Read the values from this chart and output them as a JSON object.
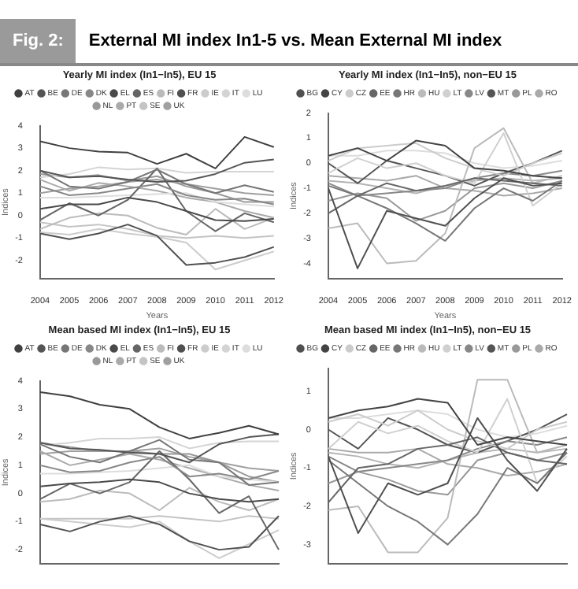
{
  "chart_data": [
    {
      "type": "other",
      "title": "External MI index In1-5 vs. Mean External MI index",
      "annotations": [
        "Fig. 2:"
      ]
    },
    {
      "type": "line",
      "title": "Yearly MI index (In1−In5), EU 15",
      "xlabel": "Years",
      "ylabel": "Indices",
      "categories": [
        "2004",
        "2005",
        "2006",
        "2007",
        "2008",
        "2009",
        "2010",
        "2011",
        "2012"
      ],
      "ylim": [
        -2.8,
        4
      ],
      "yticks": [
        -2,
        -1,
        0,
        1,
        2,
        3,
        4
      ],
      "grid": false,
      "legend": "top",
      "series": [
        {
          "name": "AT",
          "color": "#404040",
          "values": [
            3.3,
            3.0,
            2.85,
            2.8,
            2.3,
            2.75,
            2.1,
            3.5,
            3.05
          ]
        },
        {
          "name": "BE",
          "color": "#555555",
          "values": [
            2.0,
            1.7,
            1.75,
            1.6,
            1.5,
            1.55,
            1.85,
            2.35,
            2.5
          ]
        },
        {
          "name": "DE",
          "color": "#777777",
          "values": [
            2.0,
            1.3,
            1.2,
            1.5,
            2.05,
            1.4,
            1.0,
            1.35,
            1.05
          ]
        },
        {
          "name": "DK",
          "color": "#888888",
          "values": [
            1.3,
            0.9,
            1.0,
            1.2,
            1.4,
            0.9,
            0.7,
            0.75,
            0.5
          ]
        },
        {
          "name": "EL",
          "color": "#4a4a4a",
          "values": [
            0.3,
            0.5,
            0.5,
            0.8,
            0.6,
            0.2,
            -0.2,
            -0.25,
            -0.15
          ]
        },
        {
          "name": "ES",
          "color": "#666666",
          "values": [
            -0.2,
            0.55,
            0,
            0.7,
            2.1,
            0.2,
            -0.7,
            0.1,
            -0.3
          ]
        },
        {
          "name": "FI",
          "color": "#bbbbbb",
          "values": [
            -0.6,
            -0.1,
            0.1,
            0,
            -0.55,
            -0.85,
            0.3,
            -0.6,
            -0.1
          ]
        },
        {
          "name": "FR",
          "color": "#505050",
          "values": [
            -0.8,
            -1.05,
            -0.8,
            -0.4,
            -0.9,
            -2.2,
            -2.1,
            -1.85,
            -1.4
          ]
        },
        {
          "name": "IE",
          "color": "#cccccc",
          "values": [
            -0.75,
            -0.85,
            -0.6,
            -0.8,
            -0.95,
            -1.2,
            -2.4,
            -2.0,
            -1.6
          ]
        },
        {
          "name": "IT",
          "color": "#d4d4d4",
          "values": [
            1.7,
            1.85,
            2.15,
            2.05,
            2.1,
            1.9,
            1.95,
            1.95,
            1.95
          ]
        },
        {
          "name": "LU",
          "color": "#dddddd",
          "values": [
            0.8,
            0.8,
            0.85,
            0.9,
            0.95,
            1.0,
            0.6,
            0.5,
            0.4
          ]
        },
        {
          "name": "NL",
          "color": "#999999",
          "values": [
            1.85,
            1.7,
            1.8,
            1.55,
            1.75,
            1.3,
            1.0,
            0.6,
            0.6
          ]
        },
        {
          "name": "PT",
          "color": "#aaaaaa",
          "values": [
            1.6,
            1.1,
            1.45,
            1.3,
            1.1,
            0.8,
            0.6,
            0.2,
            -0.1
          ]
        },
        {
          "name": "SE",
          "color": "#c4c4c4",
          "values": [
            -0.3,
            -0.5,
            -0.4,
            -0.6,
            -0.9,
            -1.0,
            -0.9,
            -1.0,
            -0.9
          ]
        },
        {
          "name": "UK",
          "color": "#a0a0a0",
          "values": [
            1.0,
            1.2,
            1.3,
            1.5,
            1.6,
            1.4,
            1.2,
            1.0,
            0.9
          ]
        }
      ]
    },
    {
      "type": "line",
      "title": "Yearly MI index (In1−In5), non−EU 15",
      "xlabel": "Years",
      "ylabel": "Indices",
      "categories": [
        "2004",
        "2005",
        "2006",
        "2007",
        "2008",
        "2009",
        "2010",
        "2011",
        "2012"
      ],
      "ylim": [
        -4.6,
        2
      ],
      "yticks": [
        -4,
        -3,
        -2,
        -1,
        0,
        1,
        2
      ],
      "grid": false,
      "legend": "top",
      "series": [
        {
          "name": "BG",
          "color": "#505050",
          "values": [
            -1.0,
            -4.2,
            -1.9,
            -2.2,
            -2.5,
            -1.4,
            -0.6,
            -0.9,
            -0.8
          ]
        },
        {
          "name": "CY",
          "color": "#444444",
          "values": [
            0.3,
            0.6,
            0.1,
            0.9,
            0.7,
            -0.2,
            -0.3,
            -0.5,
            -0.6
          ]
        },
        {
          "name": "CZ",
          "color": "#cccccc",
          "values": [
            0.1,
            0.6,
            0.7,
            0.8,
            0.2,
            -0.2,
            -0.5,
            0.0,
            0.4
          ]
        },
        {
          "name": "EE",
          "color": "#666666",
          "values": [
            -2.0,
            -1.3,
            -0.8,
            -1.1,
            -0.9,
            -0.6,
            -0.7,
            -0.8,
            -0.9
          ]
        },
        {
          "name": "HR",
          "color": "#777777",
          "values": [
            -0.9,
            -1.3,
            -1.8,
            -2.4,
            -3.1,
            -1.8,
            -1.0,
            -1.5,
            -0.7
          ]
        },
        {
          "name": "HU",
          "color": "#bbbbbb",
          "values": [
            -2.6,
            -2.4,
            -4.0,
            -3.9,
            -2.8,
            0.6,
            1.4,
            -0.8,
            -0.5
          ]
        },
        {
          "name": "LT",
          "color": "#d0d0d0",
          "values": [
            -0.4,
            0.2,
            -0.2,
            0.0,
            -0.5,
            -0.8,
            1.2,
            -1.7,
            -0.8
          ]
        },
        {
          "name": "LV",
          "color": "#888888",
          "values": [
            -0.8,
            -1.3,
            -1.2,
            -1.1,
            -1.0,
            -0.6,
            -0.4,
            -0.5,
            -0.3
          ]
        },
        {
          "name": "MT",
          "color": "#555555",
          "values": [
            0.0,
            -0.8,
            0.1,
            -0.2,
            -0.5,
            -0.9,
            -0.4,
            0.0,
            0.5
          ]
        },
        {
          "name": "PL",
          "color": "#999999",
          "values": [
            -1.5,
            -1.2,
            -1.4,
            -2.3,
            -1.9,
            -1.0,
            -0.8,
            -1.0,
            -0.7
          ]
        },
        {
          "name": "RO",
          "color": "#aaaaaa",
          "values": [
            -0.5,
            -0.6,
            -0.7,
            -0.5,
            -1.0,
            -1.1,
            -1.3,
            -1.2,
            -1.0
          ]
        },
        {
          "color": "#b4b4b4",
          "values": [
            -0.7,
            -0.8,
            -1.0,
            -1.2,
            -0.9,
            -0.7,
            -0.6,
            -0.7,
            -0.6
          ]
        },
        {
          "color": "#dddddd",
          "values": [
            0.3,
            0.3,
            0.5,
            0.5,
            0.4,
            0.0,
            -0.2,
            -0.1,
            0.1
          ]
        }
      ]
    },
    {
      "type": "line",
      "title": "Mean based MI index (In1−In5), EU 15",
      "ylabel": "Indices",
      "categories": [
        "2004",
        "2005",
        "2006",
        "2007",
        "2008",
        "2009",
        "2010",
        "2011",
        "2012"
      ],
      "ylim": [
        -2.5,
        4
      ],
      "yticks": [
        -2,
        -1,
        0,
        1,
        2,
        3,
        4
      ],
      "grid": false,
      "legend": "top",
      "tick_labels": "y",
      "series": [
        {
          "name": "AT",
          "color": "#404040",
          "values": [
            3.6,
            3.45,
            3.15,
            3.0,
            2.35,
            1.95,
            2.15,
            2.4,
            2.1
          ]
        },
        {
          "name": "BE",
          "color": "#555555",
          "values": [
            1.8,
            1.6,
            1.55,
            1.45,
            1.4,
            1.1,
            1.75,
            2.0,
            2.1
          ]
        },
        {
          "name": "DE",
          "color": "#777777",
          "values": [
            1.75,
            1.3,
            1.1,
            1.5,
            1.9,
            1.2,
            1.1,
            0.3,
            0.4
          ]
        },
        {
          "name": "DK",
          "color": "#888888",
          "values": [
            1.0,
            0.75,
            0.8,
            1.1,
            1.3,
            0.6,
            0.7,
            0.5,
            0.8
          ]
        },
        {
          "name": "EL",
          "color": "#4a4a4a",
          "values": [
            0.25,
            0.35,
            0.4,
            0.5,
            0.4,
            0.0,
            -0.2,
            -0.3,
            -0.2
          ]
        },
        {
          "name": "ES",
          "color": "#666666",
          "values": [
            -0.2,
            0.35,
            0.0,
            0.4,
            1.5,
            0.5,
            -0.7,
            -0.1,
            -2.0
          ]
        },
        {
          "name": "FI",
          "color": "#bbbbbb",
          "values": [
            -0.3,
            -0.2,
            0.1,
            0.0,
            -0.6,
            0.2,
            -0.3,
            -0.6,
            -0.2
          ]
        },
        {
          "name": "FR",
          "color": "#505050",
          "values": [
            -1.1,
            -1.35,
            -1.0,
            -0.8,
            -1.1,
            -1.7,
            -2.0,
            -1.9,
            -0.8
          ]
        },
        {
          "name": "IE",
          "color": "#cccccc",
          "values": [
            -0.9,
            -1.0,
            -1.1,
            -1.2,
            -1.0,
            -1.7,
            -2.3,
            -1.8,
            -1.3
          ]
        },
        {
          "name": "IT",
          "color": "#d4d4d4",
          "values": [
            1.7,
            1.8,
            1.95,
            1.95,
            2.0,
            1.6,
            1.8,
            1.85,
            1.85
          ]
        },
        {
          "name": "LU",
          "color": "#dddddd",
          "values": [
            0.7,
            0.7,
            0.75,
            0.8,
            0.9,
            1.0,
            0.6,
            0.5,
            0.4
          ]
        },
        {
          "name": "NL",
          "color": "#999999",
          "values": [
            1.8,
            1.65,
            1.5,
            1.5,
            1.4,
            1.4,
            1.1,
            0.6,
            0.4
          ]
        },
        {
          "name": "PT",
          "color": "#aaaaaa",
          "values": [
            1.5,
            1.0,
            1.2,
            1.4,
            1.2,
            0.9,
            0.6,
            0.3,
            0.1
          ]
        },
        {
          "name": "SE",
          "color": "#c4c4c4",
          "values": [
            -0.9,
            -0.9,
            -0.9,
            -0.9,
            -0.8,
            -0.9,
            -1.0,
            -0.8,
            -0.9
          ]
        },
        {
          "name": "UK",
          "color": "#a0a0a0",
          "values": [
            1.4,
            1.5,
            1.5,
            1.5,
            1.6,
            1.3,
            1.1,
            0.9,
            0.8
          ]
        }
      ]
    },
    {
      "type": "line",
      "title": "Mean based MI index (In1−In5), non−EU 15",
      "ylabel": "Indices",
      "categories": [
        "2004",
        "2005",
        "2006",
        "2007",
        "2008",
        "2009",
        "2010",
        "2011",
        "2012"
      ],
      "ylim": [
        -3.5,
        1.6
      ],
      "yticks": [
        -3,
        -2,
        -1,
        0,
        1
      ],
      "grid": false,
      "legend": "top",
      "tick_labels": "y",
      "series": [
        {
          "name": "BG",
          "color": "#505050",
          "values": [
            -0.7,
            -2.7,
            -1.4,
            -1.7,
            -1.4,
            0.3,
            -0.8,
            -1.6,
            -0.5
          ]
        },
        {
          "name": "CY",
          "color": "#444444",
          "values": [
            0.3,
            0.5,
            0.6,
            0.8,
            0.7,
            -0.4,
            -0.2,
            -0.3,
            -0.4
          ]
        },
        {
          "name": "CZ",
          "color": "#cccccc",
          "values": [
            0.2,
            0.4,
            0.1,
            0.5,
            0.0,
            -0.3,
            -0.5,
            0.0,
            0.2
          ]
        },
        {
          "name": "EE",
          "color": "#666666",
          "values": [
            -1.9,
            -1.0,
            -0.9,
            -0.5,
            -0.4,
            -0.2,
            -0.6,
            -0.8,
            -0.9
          ]
        },
        {
          "name": "HR",
          "color": "#777777",
          "values": [
            -0.8,
            -1.4,
            -2.0,
            -2.4,
            -3.0,
            -2.2,
            -1.0,
            -1.4,
            -0.6
          ]
        },
        {
          "name": "HU",
          "color": "#bbbbbb",
          "values": [
            -2.1,
            -2.0,
            -3.2,
            -3.2,
            -2.3,
            1.3,
            1.3,
            -0.6,
            -0.4
          ]
        },
        {
          "name": "LT",
          "color": "#d0d0d0",
          "values": [
            -0.5,
            0.2,
            -0.1,
            0.1,
            -0.3,
            -0.6,
            0.8,
            -1.4,
            -0.7
          ]
        },
        {
          "name": "LV",
          "color": "#888888",
          "values": [
            -0.7,
            -1.1,
            -1.0,
            -0.9,
            -0.8,
            -0.5,
            -0.3,
            -0.4,
            -0.2
          ]
        },
        {
          "name": "MT",
          "color": "#555555",
          "values": [
            0.0,
            -0.5,
            0.3,
            0.0,
            -0.4,
            -0.6,
            -0.3,
            0.0,
            0.4
          ]
        },
        {
          "name": "PL",
          "color": "#999999",
          "values": [
            -1.4,
            -1.1,
            -1.3,
            -1.6,
            -1.7,
            -0.8,
            -0.6,
            -0.8,
            -0.6
          ]
        },
        {
          "name": "RO",
          "color": "#aaaaaa",
          "values": [
            -0.5,
            -0.6,
            -0.6,
            -0.5,
            -0.9,
            -1.0,
            -1.2,
            -1.1,
            -0.9
          ]
        },
        {
          "color": "#b4b4b4",
          "values": [
            -0.6,
            -0.7,
            -0.9,
            -1.0,
            -0.8,
            -0.6,
            -0.5,
            -0.6,
            -0.5
          ]
        },
        {
          "color": "#dddddd",
          "values": [
            0.3,
            0.3,
            0.4,
            0.5,
            0.4,
            0.0,
            -0.2,
            -0.1,
            0.1
          ]
        }
      ]
    }
  ]
}
